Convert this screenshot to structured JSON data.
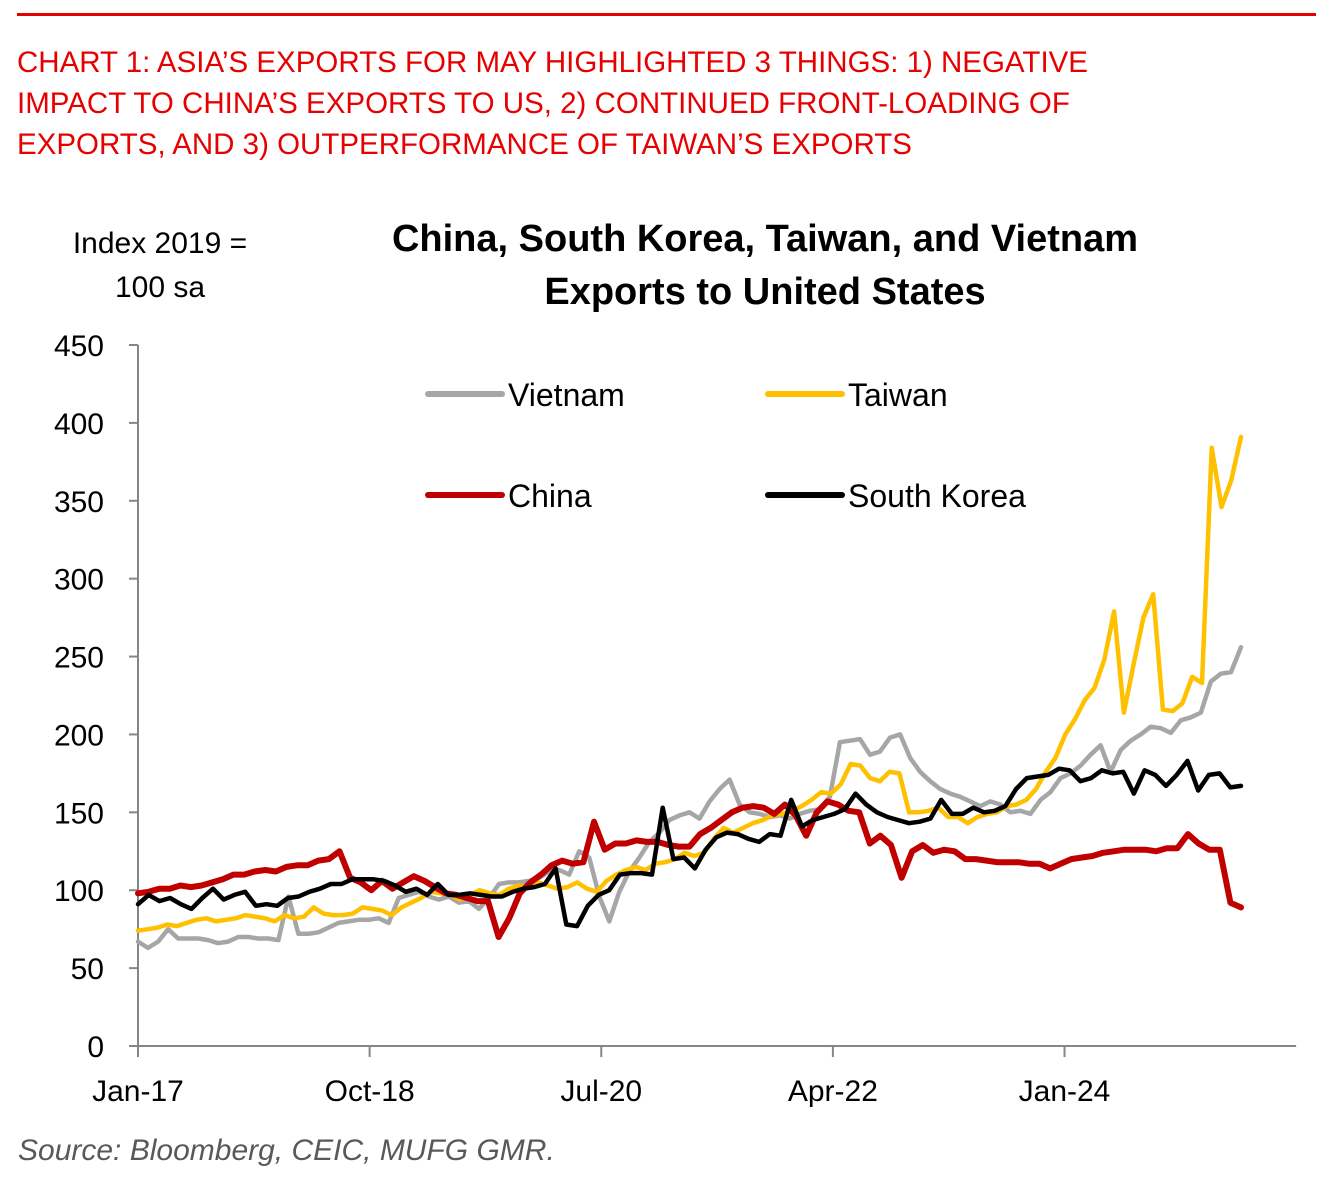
{
  "header": {
    "heading_lines": [
      "CHART 1: ASIA’S EXPORTS FOR MAY HIGHLIGHTED 3 THINGS: 1) NEGATIVE",
      "IMPACT TO CHINA’S EXPORTS TO US, 2) CONTINUED FRONT-LOADING OF",
      "EXPORTS, AND 3) OUTPERFORMANCE OF TAIWAN’S EXPORTS"
    ],
    "accent_color": "#e60000"
  },
  "source": "Source: Bloomberg, CEIC, MUFG GMR.",
  "chart_data": {
    "type": "line",
    "title_lines": [
      "China, South Korea, Taiwan, and Vietnam",
      "Exports to United States"
    ],
    "ylabel_lines": [
      "Index 2019 =",
      "100 sa"
    ],
    "xlabel": "",
    "x_start": "Jan-17",
    "x_end": "May-25",
    "x_frequency": "monthly",
    "x_tick_labels": [
      "Jan-17",
      "Oct-18",
      "Jul-20",
      "Apr-22",
      "Jan-24"
    ],
    "x_tick_month_index": [
      0,
      21,
      42,
      63,
      84,
      105
    ],
    "x_range_months": [
      0,
      105
    ],
    "ylim": [
      0,
      450
    ],
    "y_ticks": [
      0,
      50,
      100,
      150,
      200,
      250,
      300,
      350,
      400,
      450
    ],
    "grid": false,
    "legend_position": "top-center (2x2)",
    "axis_color": "#868686",
    "series": [
      {
        "name": "Vietnam",
        "color": "#a6a6a6",
        "values": [
          67,
          63,
          67,
          75,
          69,
          69,
          69,
          68,
          66,
          67,
          70,
          70,
          69,
          69,
          68,
          96,
          72,
          72,
          73,
          76,
          79,
          80,
          81,
          81,
          82,
          79,
          95,
          97,
          99,
          96,
          94,
          96,
          92,
          93,
          88,
          95,
          104,
          105,
          105,
          106,
          108,
          112,
          113,
          110,
          125,
          121,
          96,
          80,
          99,
          112,
          121,
          131,
          137,
          145,
          148,
          150,
          146,
          157,
          165,
          171,
          155,
          150,
          149,
          147,
          148,
          146,
          149,
          151,
          152,
          160,
          195,
          196,
          197,
          187,
          189,
          198,
          200,
          185,
          176,
          170,
          165,
          162,
          160,
          157,
          154,
          157,
          155,
          150,
          151,
          149,
          158,
          163,
          172,
          175,
          180,
          187,
          193,
          176,
          190,
          196,
          200,
          205,
          204,
          201,
          209,
          211,
          214,
          234,
          239,
          240,
          256
        ]
      },
      {
        "name": "Taiwan",
        "color": "#ffc000",
        "values": [
          74,
          75,
          76,
          78,
          77,
          79,
          81,
          82,
          80,
          81,
          82,
          84,
          83,
          82,
          80,
          84,
          82,
          83,
          89,
          85,
          84,
          84,
          85,
          89,
          88,
          87,
          84,
          89,
          92,
          95,
          99,
          98,
          97,
          94,
          97,
          100,
          98,
          97,
          101,
          103,
          102,
          105,
          103,
          101,
          102,
          105,
          101,
          99,
          106,
          110,
          113,
          115,
          113,
          117,
          118,
          120,
          124,
          122,
          124,
          133,
          140,
          137,
          140,
          143,
          145,
          148,
          149,
          151,
          154,
          158,
          163,
          162,
          168,
          181,
          180,
          172,
          170,
          176,
          175,
          150,
          150,
          151,
          153,
          147,
          147,
          143,
          147,
          149,
          150,
          154,
          155,
          158,
          165,
          176,
          185,
          200,
          210,
          222,
          230,
          248,
          279,
          214,
          245,
          275,
          290,
          216,
          215,
          220,
          237,
          233,
          384,
          346,
          363,
          391
        ]
      },
      {
        "name": "China",
        "color": "#c00000",
        "values": [
          98,
          99,
          101,
          101,
          103,
          102,
          103,
          105,
          107,
          110,
          110,
          112,
          113,
          112,
          115,
          116,
          116,
          119,
          120,
          125,
          108,
          105,
          100,
          106,
          101,
          105,
          109,
          106,
          102,
          98,
          97,
          95,
          93,
          93,
          70,
          82,
          98,
          105,
          110,
          116,
          119,
          117,
          118,
          144,
          126,
          130,
          130,
          132,
          131,
          131,
          129,
          128,
          128,
          136,
          140,
          145,
          150,
          153,
          154,
          153,
          149,
          155,
          148,
          135,
          150,
          157,
          155,
          151,
          150,
          130,
          135,
          129,
          108,
          125,
          129,
          124,
          126,
          125,
          120,
          120,
          119,
          118,
          118,
          118,
          117,
          117,
          114,
          117,
          120,
          121,
          122,
          124,
          125,
          126,
          126,
          126,
          125,
          127,
          127,
          136,
          130,
          126,
          126,
          92,
          89
        ]
      },
      {
        "name": "South Korea",
        "color": "#000000",
        "values": [
          91,
          97,
          93,
          95,
          91,
          88,
          95,
          101,
          94,
          97,
          99,
          90,
          91,
          90,
          95,
          96,
          99,
          101,
          104,
          104,
          107,
          107,
          107,
          106,
          103,
          99,
          101,
          97,
          104,
          97,
          97,
          98,
          97,
          96,
          96,
          99,
          101,
          102,
          104,
          114,
          78,
          77,
          90,
          97,
          100,
          110,
          111,
          111,
          110,
          153,
          120,
          121,
          114,
          126,
          134,
          137,
          136,
          133,
          131,
          136,
          135,
          158,
          141,
          145,
          147,
          149,
          152,
          162,
          155,
          150,
          147,
          145,
          143,
          144,
          146,
          158,
          149,
          149,
          153,
          150,
          151,
          154,
          165,
          172,
          173,
          174,
          178,
          177,
          170,
          172,
          177,
          175,
          176,
          162,
          177,
          174,
          167,
          174,
          183,
          164,
          174,
          175,
          166,
          167
        ]
      }
    ]
  }
}
